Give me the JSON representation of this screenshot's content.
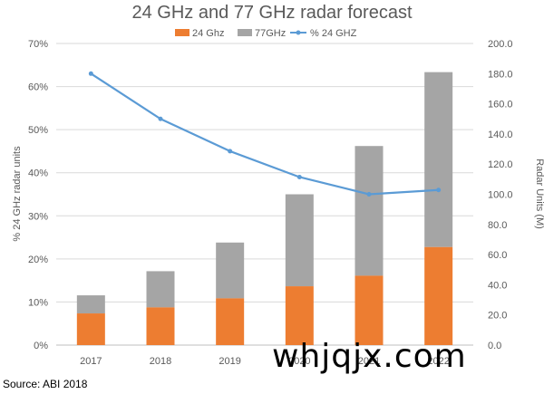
{
  "chart_data": {
    "type": "bar",
    "title": "24 GHz and 77 GHz radar forecast",
    "categories": [
      "2017",
      "2018",
      "2019",
      "2020",
      "2021",
      "2022"
    ],
    "series": [
      {
        "name": "24 Ghz",
        "type": "stacked-bar",
        "axis": "right",
        "color": "#ED7D31",
        "values": [
          21,
          25,
          31,
          39,
          46,
          65
        ]
      },
      {
        "name": "77GHz",
        "type": "stacked-bar",
        "axis": "right",
        "color": "#A5A5A5",
        "values": [
          12,
          24,
          37,
          61,
          86,
          116
        ]
      },
      {
        "name": "% 24 GHZ",
        "type": "line",
        "axis": "left",
        "color": "#5B9BD5",
        "values": [
          63,
          52.5,
          45,
          39,
          35,
          36
        ]
      }
    ],
    "y_left": {
      "label": "% 24 GHz radar units",
      "ylim": [
        0,
        70
      ],
      "ticks": [
        "0%",
        "10%",
        "20%",
        "30%",
        "40%",
        "50%",
        "60%",
        "70%"
      ]
    },
    "y_right": {
      "label": "Radar Units (M)",
      "ylim": [
        0,
        200
      ],
      "ticks": [
        "0.0",
        "20.0",
        "40.0",
        "60.0",
        "80.0",
        "100.0",
        "120.0",
        "140.0",
        "160.0",
        "180.0",
        "200.0"
      ]
    },
    "grid": true,
    "legend": "top"
  },
  "source": "Source: ABI 2018",
  "watermark": "whjqjx.com"
}
